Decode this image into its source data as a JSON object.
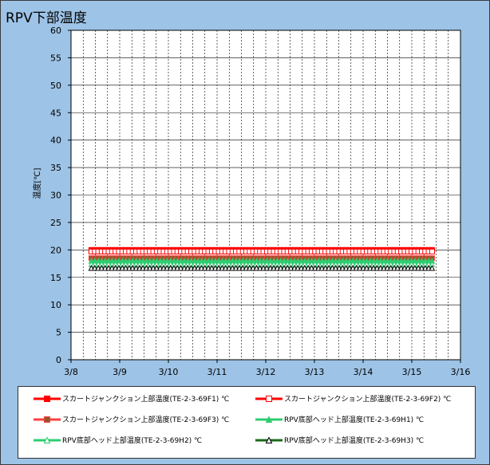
{
  "chart_data": {
    "type": "line",
    "title": "RPV下部温度",
    "ylabel": "温度[℃]",
    "xlabel": "",
    "ylim": [
      0,
      60
    ],
    "yticks": [
      0,
      5,
      10,
      15,
      20,
      25,
      30,
      35,
      40,
      45,
      50,
      55,
      60
    ],
    "xlim": [
      "3/8",
      "3/16"
    ],
    "xticks": [
      "3/8",
      "3/9",
      "3/10",
      "3/11",
      "3/12",
      "3/13",
      "3/14",
      "3/15",
      "3/16"
    ],
    "grid": true,
    "legend_position": "bottom",
    "series": [
      {
        "name": "スカートジャンクション上部温度(TE-2-3-69F1) ℃",
        "color": "#ff0000",
        "marker": "square-filled",
        "start": "3/8 10:00",
        "end": "3/15 10:00",
        "values": [
          20.0,
          20.0,
          20.0,
          20.0,
          20.0,
          20.0,
          20.0,
          20.0
        ]
      },
      {
        "name": "スカートジャンクション上部温度(TE-2-3-69F2) ℃",
        "color": "#ff0000",
        "marker": "square-open",
        "start": "3/8 10:00",
        "end": "3/15 10:00",
        "values": [
          19.7,
          19.7,
          19.7,
          19.7,
          19.7,
          19.7,
          19.7,
          19.7
        ]
      },
      {
        "name": "スカートジャンクション上部温度(TE-2-3-69F3) ℃",
        "color": "#ff4040",
        "marker": "square-brown",
        "start": "3/8 10:00",
        "end": "3/15 10:00",
        "values": [
          18.5,
          18.5,
          18.5,
          18.5,
          18.5,
          18.5,
          18.5,
          18.5
        ]
      },
      {
        "name": "RPV底部ヘッド上部温度(TE-2-3-69H1) ℃",
        "color": "#2ecc71",
        "marker": "triangle-filled",
        "start": "3/8 10:00",
        "end": "3/15 10:00",
        "values": [
          18.0,
          18.0,
          18.0,
          18.0,
          18.0,
          18.0,
          18.0,
          18.0
        ]
      },
      {
        "name": "RPV底部ヘッド上部温度(TE-2-3-69H2) ℃",
        "color": "#2ecc71",
        "marker": "triangle-open",
        "start": "3/8 10:00",
        "end": "3/15 10:00",
        "values": [
          17.4,
          17.4,
          17.4,
          17.4,
          17.4,
          17.4,
          17.4,
          17.4
        ]
      },
      {
        "name": "RPV底部ヘッド上部温度(TE-2-3-69H3) ℃",
        "color": "#1a6b1a",
        "marker": "triangle-open-dark",
        "start": "3/8 10:00",
        "end": "3/15 10:00",
        "values": [
          16.7,
          16.7,
          16.7,
          16.7,
          16.7,
          16.7,
          16.7,
          16.7
        ]
      }
    ]
  }
}
